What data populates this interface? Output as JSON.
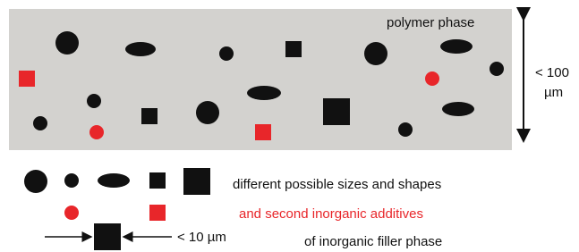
{
  "diagram": {
    "matrix_label": "polymer phase",
    "scale_large": [
      "< 100",
      "µm"
    ],
    "legend_shapes": "different possible sizes and shapes",
    "legend_additives": "and second inorganic additives",
    "scale_small": "< 10 µm",
    "legend_filler": "of inorganic filler phase"
  }
}
